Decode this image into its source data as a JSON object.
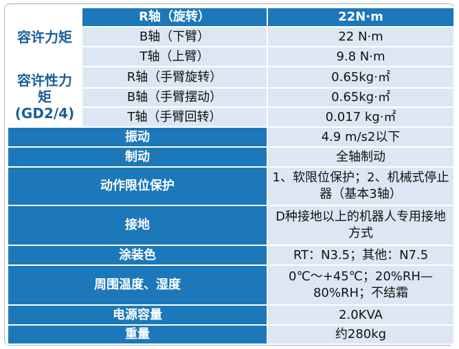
{
  "spec_table": {
    "torque": {
      "label": "容许力矩",
      "rows": [
        [
          "R轴（旋转）",
          "22N·m"
        ],
        [
          "B轴（下臂）",
          "22 N·m"
        ],
        [
          "T轴（上臂）",
          "9.8 N·m"
        ]
      ]
    },
    "inertia": {
      "label": "容许性力矩(GD2/4)",
      "rows": [
        [
          "R轴（手臂旋转）",
          "0.65kg·㎡"
        ],
        [
          "B轴（手臂摆动）",
          "0.65kg·㎡"
        ],
        [
          "T轴（手臂回转）",
          "0.017 kg·㎡"
        ]
      ]
    },
    "rows": [
      [
        "振动",
        "4.9 m/s2以下"
      ],
      [
        "制动",
        "全轴制动"
      ],
      [
        "动作限位保护",
        "1、软限位保护；2、机械式停止器（基本3轴）"
      ],
      [
        "接地",
        "D种接地以上的机器人专用接地方式"
      ],
      [
        "涂装色",
        "RT：N3.5；其他：N7.5"
      ],
      [
        "周围温度、湿度",
        "0℃～+45℃；20%RH—80%RH；不结霜"
      ],
      [
        "电源容量",
        "2.0KVA"
      ],
      [
        "重量",
        "约280kg"
      ]
    ]
  }
}
